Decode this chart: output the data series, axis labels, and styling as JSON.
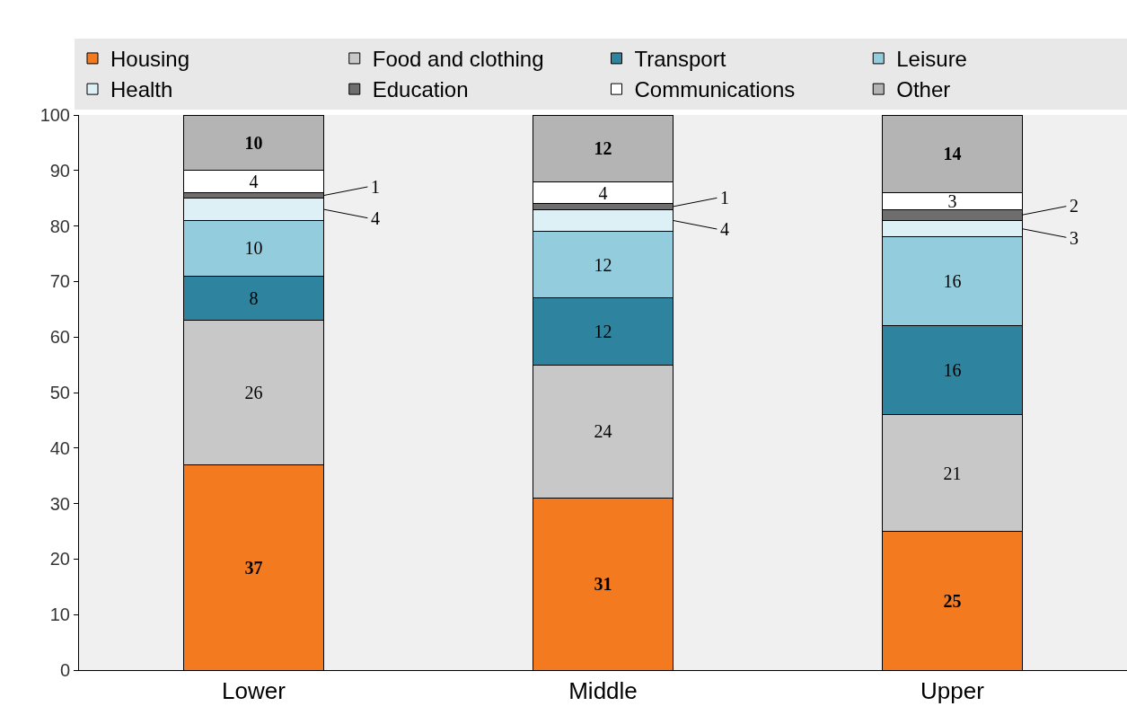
{
  "chart_data": {
    "type": "bar",
    "stacked": true,
    "data_labels": true,
    "legend": "top",
    "grid": false,
    "categories": [
      "Lower",
      "Middle",
      "Upper"
    ],
    "ylim": [
      0,
      100
    ],
    "yticks": [
      0,
      10,
      20,
      30,
      40,
      50,
      60,
      70,
      80,
      90,
      100
    ],
    "series": [
      {
        "name": "Housing",
        "color": "#f47a20",
        "values": [
          37,
          31,
          25
        ]
      },
      {
        "name": "Food and clothing",
        "color": "#c8c8c8",
        "values": [
          26,
          24,
          21
        ]
      },
      {
        "name": "Transport",
        "color": "#2e849e",
        "values": [
          8,
          12,
          16
        ]
      },
      {
        "name": "Leisure",
        "color": "#93cddd",
        "values": [
          10,
          12,
          16
        ]
      },
      {
        "name": "Health",
        "color": "#dcf0f5",
        "values": [
          4,
          4,
          3
        ]
      },
      {
        "name": "Education",
        "color": "#6e6e6e",
        "values": [
          1,
          1,
          2
        ]
      },
      {
        "name": "Communications",
        "color": "#ffffff",
        "values": [
          4,
          4,
          3
        ]
      },
      {
        "name": "Other",
        "color": "#b4b4b4",
        "values": [
          10,
          12,
          14
        ]
      }
    ]
  }
}
